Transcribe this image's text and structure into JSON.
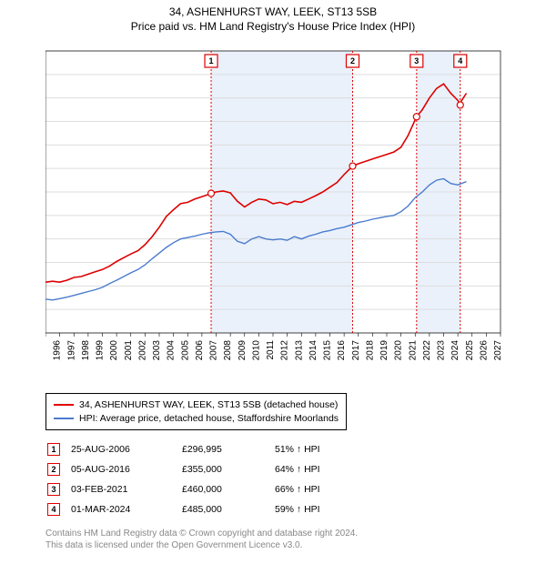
{
  "title": {
    "line1": "34, ASHENHURST WAY, LEEK, ST13 5SB",
    "line2": "Price paid vs. HM Land Registry's House Price Index (HPI)"
  },
  "chart": {
    "type": "line",
    "background_color": "#ffffff",
    "shade_color": "#eaf1fb",
    "grid_color": "#dddddd",
    "text_color": "#000000",
    "x": {
      "min": 1995,
      "max": 2027,
      "ticks": [
        1995,
        1996,
        1997,
        1998,
        1999,
        2000,
        2001,
        2002,
        2003,
        2004,
        2005,
        2006,
        2007,
        2008,
        2009,
        2010,
        2011,
        2012,
        2013,
        2014,
        2015,
        2016,
        2017,
        2018,
        2019,
        2020,
        2021,
        2022,
        2023,
        2024,
        2025,
        2026,
        2027
      ],
      "tick_fontsize": 10
    },
    "y": {
      "min": 0,
      "max": 600,
      "ticks": [
        0,
        50,
        100,
        150,
        200,
        250,
        300,
        350,
        400,
        450,
        500,
        550,
        600
      ],
      "prefix": "£",
      "suffix": "K",
      "tick_fontsize": 10
    },
    "series_a": {
      "name": "34, ASHENHURST WAY, LEEK, ST13 5SB (detached house)",
      "color": "#dd0000",
      "line_width": 1.6,
      "data": [
        [
          1995,
          108
        ],
        [
          1995.5,
          110
        ],
        [
          1996,
          108
        ],
        [
          1996.5,
          112
        ],
        [
          1997,
          118
        ],
        [
          1997.5,
          120
        ],
        [
          1998,
          125
        ],
        [
          1998.5,
          130
        ],
        [
          1999,
          135
        ],
        [
          1999.5,
          142
        ],
        [
          2000,
          152
        ],
        [
          2000.5,
          160
        ],
        [
          2001,
          168
        ],
        [
          2001.5,
          175
        ],
        [
          2002,
          188
        ],
        [
          2002.5,
          205
        ],
        [
          2003,
          225
        ],
        [
          2003.5,
          248
        ],
        [
          2004,
          262
        ],
        [
          2004.5,
          275
        ],
        [
          2005,
          278
        ],
        [
          2005.5,
          285
        ],
        [
          2006,
          290
        ],
        [
          2006.65,
          297
        ],
        [
          2007,
          300
        ],
        [
          2007.5,
          302
        ],
        [
          2008,
          298
        ],
        [
          2008.5,
          280
        ],
        [
          2009,
          268
        ],
        [
          2009.5,
          278
        ],
        [
          2010,
          285
        ],
        [
          2010.5,
          283
        ],
        [
          2011,
          275
        ],
        [
          2011.5,
          278
        ],
        [
          2012,
          273
        ],
        [
          2012.5,
          280
        ],
        [
          2013,
          278
        ],
        [
          2013.5,
          285
        ],
        [
          2014,
          292
        ],
        [
          2014.5,
          300
        ],
        [
          2015,
          310
        ],
        [
          2015.5,
          320
        ],
        [
          2016,
          337
        ],
        [
          2016.6,
          355
        ],
        [
          2017,
          360
        ],
        [
          2017.5,
          365
        ],
        [
          2018,
          370
        ],
        [
          2018.5,
          375
        ],
        [
          2019,
          380
        ],
        [
          2019.5,
          385
        ],
        [
          2020,
          395
        ],
        [
          2020.5,
          420
        ],
        [
          2021.1,
          460
        ],
        [
          2021.5,
          475
        ],
        [
          2022,
          500
        ],
        [
          2022.5,
          520
        ],
        [
          2023,
          530
        ],
        [
          2023.5,
          510
        ],
        [
          2024,
          495
        ],
        [
          2024.17,
          485
        ],
        [
          2024.17,
          490
        ],
        [
          2024.6,
          510
        ]
      ]
    },
    "series_b": {
      "name": "HPI: Average price, detached house, Staffordshire Moorlands",
      "color": "#4a7bce",
      "line_width": 1.4,
      "data": [
        [
          1995,
          72
        ],
        [
          1995.5,
          70
        ],
        [
          1996,
          73
        ],
        [
          1996.5,
          76
        ],
        [
          1997,
          80
        ],
        [
          1997.5,
          84
        ],
        [
          1998,
          88
        ],
        [
          1998.5,
          92
        ],
        [
          1999,
          97
        ],
        [
          1999.5,
          105
        ],
        [
          2000,
          112
        ],
        [
          2000.5,
          120
        ],
        [
          2001,
          128
        ],
        [
          2001.5,
          135
        ],
        [
          2002,
          145
        ],
        [
          2002.5,
          158
        ],
        [
          2003,
          170
        ],
        [
          2003.5,
          182
        ],
        [
          2004,
          192
        ],
        [
          2004.5,
          200
        ],
        [
          2005,
          203
        ],
        [
          2005.5,
          206
        ],
        [
          2006,
          210
        ],
        [
          2006.5,
          213
        ],
        [
          2007,
          215
        ],
        [
          2007.5,
          216
        ],
        [
          2008,
          210
        ],
        [
          2008.5,
          195
        ],
        [
          2009,
          190
        ],
        [
          2009.5,
          200
        ],
        [
          2010,
          205
        ],
        [
          2010.5,
          200
        ],
        [
          2011,
          198
        ],
        [
          2011.5,
          200
        ],
        [
          2012,
          197
        ],
        [
          2012.5,
          205
        ],
        [
          2013,
          200
        ],
        [
          2013.5,
          206
        ],
        [
          2014,
          210
        ],
        [
          2014.5,
          215
        ],
        [
          2015,
          218
        ],
        [
          2015.5,
          222
        ],
        [
          2016,
          225
        ],
        [
          2016.5,
          230
        ],
        [
          2017,
          235
        ],
        [
          2017.5,
          238
        ],
        [
          2018,
          242
        ],
        [
          2018.5,
          245
        ],
        [
          2019,
          248
        ],
        [
          2019.5,
          250
        ],
        [
          2020,
          258
        ],
        [
          2020.5,
          270
        ],
        [
          2021,
          288
        ],
        [
          2021.5,
          300
        ],
        [
          2022,
          315
        ],
        [
          2022.5,
          325
        ],
        [
          2023,
          328
        ],
        [
          2023.5,
          318
        ],
        [
          2024,
          315
        ],
        [
          2024.6,
          322
        ]
      ]
    },
    "sale_markers": [
      {
        "num": "1",
        "year": 2006.65,
        "price_k": 297,
        "box_color": "#dd0000"
      },
      {
        "num": "2",
        "year": 2016.6,
        "price_k": 355,
        "box_color": "#dd0000"
      },
      {
        "num": "3",
        "year": 2021.1,
        "price_k": 460,
        "box_color": "#dd0000"
      },
      {
        "num": "4",
        "year": 2024.17,
        "price_k": 485,
        "box_color": "#dd0000"
      }
    ],
    "shaded_periods": [
      [
        2006.65,
        2016.6
      ],
      [
        2021.1,
        2024.17
      ]
    ]
  },
  "legend": {
    "series_a_label": "34, ASHENHURST WAY, LEEK, ST13 5SB (detached house)",
    "series_b_label": "HPI: Average price, detached house, Staffordshire Moorlands"
  },
  "sales": [
    {
      "num": "1",
      "date": "25-AUG-2006",
      "price": "£296,995",
      "pct": "51% ↑ HPI",
      "box_color": "#dd0000"
    },
    {
      "num": "2",
      "date": "05-AUG-2016",
      "price": "£355,000",
      "pct": "64% ↑ HPI",
      "box_color": "#dd0000"
    },
    {
      "num": "3",
      "date": "03-FEB-2021",
      "price": "£460,000",
      "pct": "66% ↑ HPI",
      "box_color": "#dd0000"
    },
    {
      "num": "4",
      "date": "01-MAR-2024",
      "price": "£485,000",
      "pct": "59% ↑ HPI",
      "box_color": "#dd0000"
    }
  ],
  "footer": {
    "line1": "Contains HM Land Registry data © Crown copyright and database right 2024.",
    "line2": "This data is licensed under the Open Government Licence v3.0."
  }
}
